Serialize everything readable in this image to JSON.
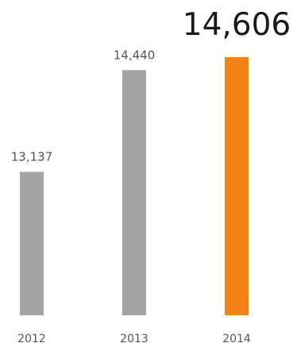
{
  "chart_data": {
    "type": "bar",
    "categories": [
      "2012",
      "2013",
      "2014"
    ],
    "values": [
      13137,
      14440,
      14606
    ],
    "value_labels": [
      "13,137",
      "14,440",
      "14,606"
    ],
    "highlight_index": 2,
    "colors": {
      "default": "#a2a3a2",
      "highlight": "#f28213"
    },
    "title": "",
    "xlabel": "",
    "ylabel": "",
    "grid": false,
    "legend": "none"
  }
}
